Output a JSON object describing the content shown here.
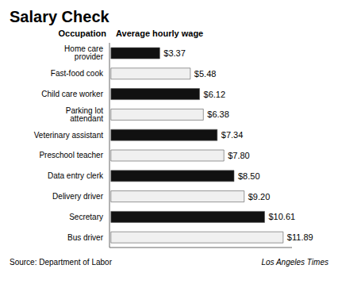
{
  "chart_data": {
    "type": "bar",
    "orientation": "horizontal",
    "title": "Salary Check",
    "ylabel": "Occupation",
    "xlabel": "Average hourly wage",
    "annotations": [
      "Source: Department of Labor",
      "Los Angeles Times"
    ],
    "categories": [
      "Home care provider",
      "Fast-food cook",
      "Child care worker",
      "Parking lot attendant",
      "Veterinary assistant",
      "Preschool teacher",
      "Data entry clerk",
      "Delivery driver",
      "Secretary",
      "Bus driver"
    ],
    "values": [
      3.37,
      5.48,
      6.12,
      6.38,
      7.34,
      7.8,
      8.5,
      9.2,
      10.61,
      11.89
    ],
    "value_labels": [
      "$3.37",
      "$5.48",
      "$6.12",
      "$6.38",
      "$7.34",
      "$7.80",
      "$8.50",
      "$9.20",
      "$10.61",
      "$11.89"
    ],
    "data_labels": true,
    "colors": [
      "#111111",
      "#f0f0f0",
      "#111111",
      "#f0f0f0",
      "#111111",
      "#f0f0f0",
      "#111111",
      "#f0f0f0",
      "#111111",
      "#f0f0f0"
    ],
    "xlim": [
      -0.1,
      12.5
    ],
    "tick_labels": "y",
    "grid": false
  }
}
